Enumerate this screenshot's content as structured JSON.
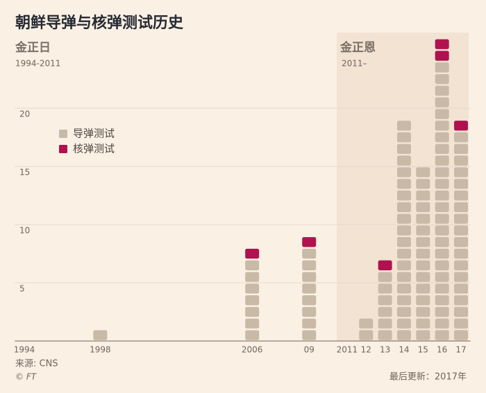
{
  "chart_data": {
    "type": "unit_stack",
    "title": "朝鲜导弹与核弹测试历史",
    "eras": [
      {
        "name": "金正日",
        "period": "1994-2011"
      },
      {
        "name": "金正恩",
        "period": "2011–"
      }
    ],
    "x": [
      1998,
      2006,
      2009,
      2012,
      2013,
      2014,
      2015,
      2016,
      2017
    ],
    "series": [
      {
        "name": "导弹测试",
        "color": "#c9b9a7",
        "values": [
          1,
          7,
          8,
          2,
          6,
          19,
          15,
          24,
          18
        ]
      },
      {
        "name": "核弹测试",
        "color": "#b0124f",
        "values": [
          0,
          1,
          1,
          0,
          1,
          0,
          0,
          2,
          1
        ]
      }
    ],
    "xlim": [
      1993.5,
      2017.5
    ],
    "xticks": [
      1994,
      1998,
      2006,
      {
        "value": 2009,
        "label": "09"
      },
      2011,
      {
        "value": 2012,
        "label": "12"
      },
      {
        "value": 2013,
        "label": "13"
      },
      {
        "value": 2014,
        "label": "14"
      },
      {
        "value": 2015,
        "label": "15"
      },
      {
        "value": 2016,
        "label": "16"
      },
      {
        "value": 2017,
        "label": "17"
      }
    ],
    "ylim": [
      0,
      26.5
    ],
    "yticks": [
      5,
      10,
      15,
      20
    ],
    "grid": true,
    "source": "来源: CNS",
    "credit": "© FT",
    "note": "最后更新：2017年"
  }
}
